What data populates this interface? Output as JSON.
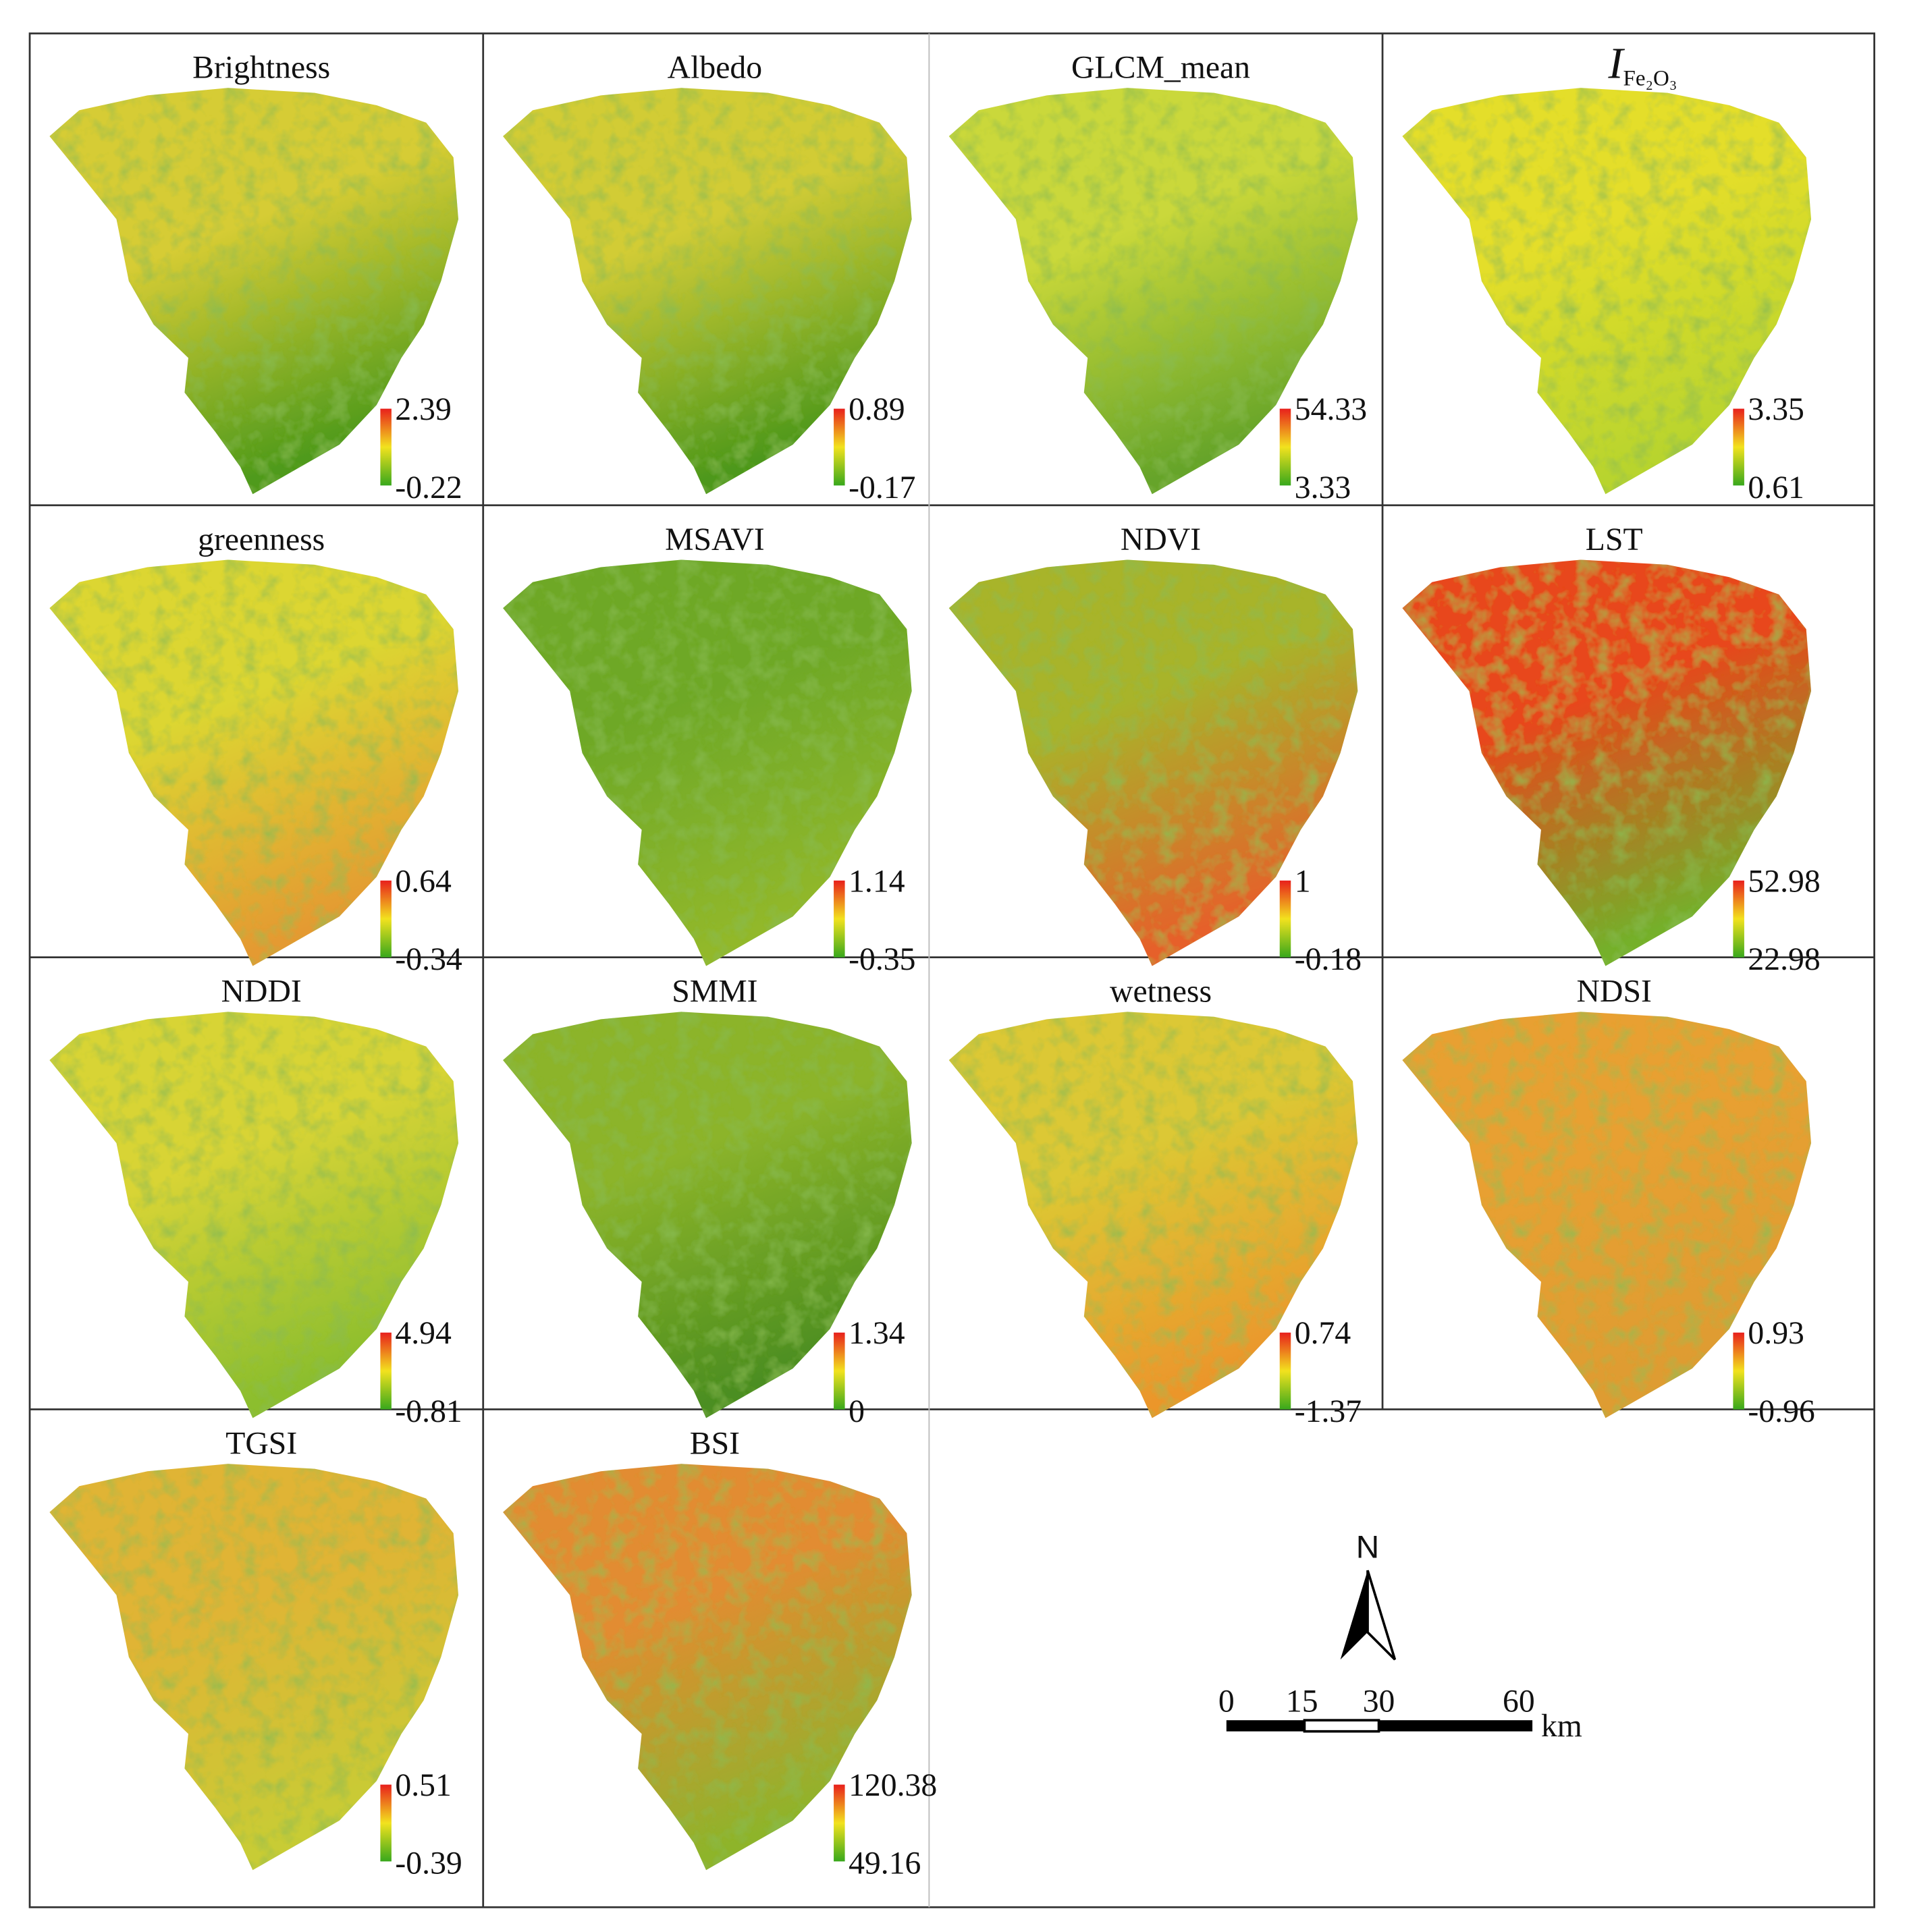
{
  "panels": [
    {
      "title": "Brightness",
      "max": "2.39",
      "min": "-0.22"
    },
    {
      "title": "Albedo",
      "max": "0.89",
      "min": "-0.17"
    },
    {
      "title": "GLCM_mean",
      "max": "54.33",
      "min": "3.33"
    },
    {
      "title": "I",
      "title_sub": "Fe₂O₃",
      "max": "3.35",
      "min": "0.61"
    },
    {
      "title": "greenness",
      "max": "0.64",
      "min": "-0.34"
    },
    {
      "title": "MSAVI",
      "max": "1.14",
      "min": "-0.35"
    },
    {
      "title": "NDVI",
      "max": "1",
      "min": "-0.18"
    },
    {
      "title": "LST",
      "max": "52.98",
      "min": "22.98"
    },
    {
      "title": "NDDI",
      "max": "4.94",
      "min": "-0.81"
    },
    {
      "title": "SMMI",
      "max": "1.34",
      "min": "0"
    },
    {
      "title": "wetness",
      "max": "0.74",
      "min": "-1.37"
    },
    {
      "title": "NDSI",
      "max": "0.93",
      "min": "-0.96"
    },
    {
      "title": "TGSI",
      "max": "0.51",
      "min": "-0.39"
    },
    {
      "title": "BSI",
      "max": "120.38",
      "min": "49.16"
    }
  ],
  "scale_bar": {
    "north": "N",
    "ticks": [
      "0",
      "15",
      "30",
      "60"
    ],
    "unit": "km"
  }
}
